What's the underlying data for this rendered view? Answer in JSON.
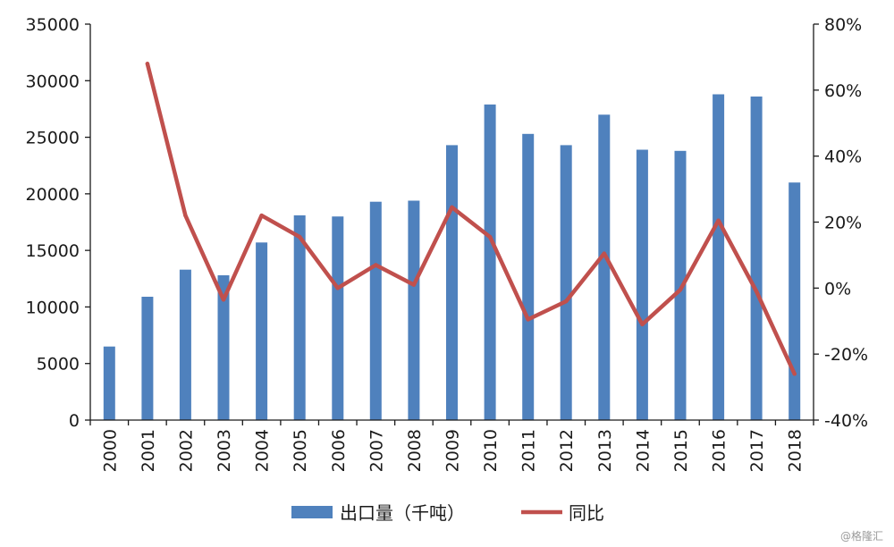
{
  "chart_data": {
    "type": "bar",
    "categories": [
      "2000",
      "2001",
      "2002",
      "2003",
      "2004",
      "2005",
      "2006",
      "2007",
      "2008",
      "2009",
      "2010",
      "2011",
      "2012",
      "2013",
      "2014",
      "2015",
      "2016",
      "2017",
      "2018"
    ],
    "series": [
      {
        "name": "出口量（千吨）",
        "type": "bar",
        "axis": "left",
        "color": "#4f81bd",
        "values": [
          6500,
          10900,
          13300,
          12800,
          15700,
          18100,
          18000,
          19300,
          19400,
          24300,
          27900,
          25300,
          24300,
          27000,
          23900,
          23800,
          28800,
          28600,
          21000
        ]
      },
      {
        "name": "同比",
        "type": "line",
        "axis": "right",
        "color": "#c0504d",
        "values": [
          null,
          68,
          22,
          -3.5,
          22,
          15.5,
          0,
          7,
          1,
          24.5,
          15.5,
          -9.5,
          -4,
          10.5,
          -11,
          -0.5,
          20.5,
          -1,
          -26
        ]
      }
    ],
    "y_left": {
      "min": 0,
      "max": 35000,
      "ticks": [
        "0",
        "5000",
        "10000",
        "15000",
        "20000",
        "25000",
        "30000",
        "35000"
      ]
    },
    "y_right": {
      "min": -40,
      "max": 80,
      "ticks": [
        "-40%",
        "-20%",
        "0%",
        "20%",
        "40%",
        "60%",
        "80%"
      ]
    },
    "grid": false,
    "legend_position": "bottom",
    "title": "",
    "xlabel": "",
    "ylabel": ""
  },
  "watermark": "@格隆汇"
}
